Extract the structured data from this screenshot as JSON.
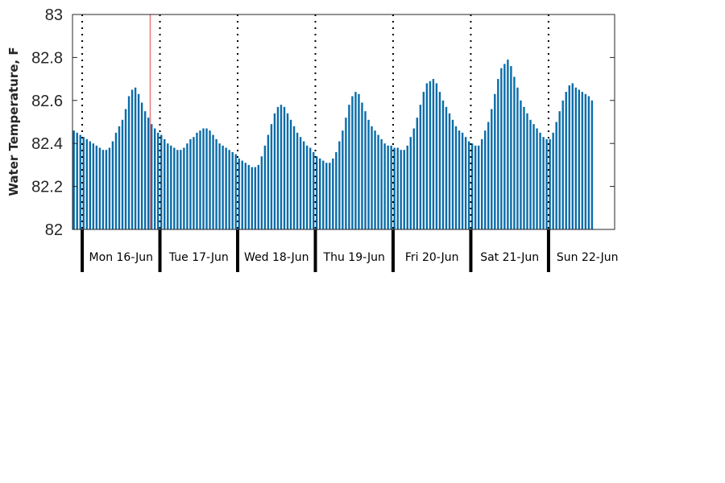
{
  "chart_data": {
    "type": "bar",
    "title": "",
    "xlabel": "",
    "ylabel": "Water Temperature, F",
    "ylim": [
      82,
      83
    ],
    "yticks": [
      82,
      82.2,
      82.4,
      82.6,
      82.8,
      83
    ],
    "ytick_labels": [
      "82",
      "82.2",
      "82.4",
      "82.6",
      "82.8",
      "83"
    ],
    "grid": false,
    "legend": "none",
    "sample_interval_hours": 1,
    "x_start": "15-Jun 21:00",
    "day_labels": [
      "Mon 16-Jun",
      "Tue 17-Jun",
      "Wed 18-Jun",
      "Thu 19-Jun",
      "Fri 20-Jun",
      "Sat 21-Jun",
      "Sun 22-Jun"
    ],
    "day_boundaries": [
      "16-Jun 00:00",
      "17-Jun 00:00",
      "18-Jun 00:00",
      "19-Jun 00:00",
      "20-Jun 00:00",
      "21-Jun 00:00",
      "22-Jun 00:00"
    ],
    "current_time_marker": "16-Jun 21:00",
    "colors": {
      "bar": "#0a6ca8",
      "marker": "#e8787c",
      "day_line": "#000000"
    },
    "values": [
      82.46,
      82.45,
      82.44,
      82.43,
      82.42,
      82.41,
      82.4,
      82.39,
      82.38,
      82.37,
      82.37,
      82.38,
      82.41,
      82.45,
      82.48,
      82.51,
      82.56,
      82.62,
      82.65,
      82.66,
      82.63,
      82.59,
      82.55,
      82.52,
      82.49,
      82.47,
      82.45,
      82.44,
      82.42,
      82.4,
      82.39,
      82.38,
      82.37,
      82.37,
      82.38,
      82.4,
      82.42,
      82.43,
      82.45,
      82.46,
      82.47,
      82.47,
      82.46,
      82.44,
      82.42,
      82.4,
      82.39,
      82.38,
      82.37,
      82.36,
      82.35,
      82.33,
      82.32,
      82.31,
      82.3,
      82.29,
      82.29,
      82.3,
      82.34,
      82.39,
      82.44,
      82.49,
      82.54,
      82.57,
      82.58,
      82.57,
      82.54,
      82.51,
      82.48,
      82.45,
      82.43,
      82.41,
      82.39,
      82.38,
      82.36,
      82.34,
      82.33,
      82.32,
      82.31,
      82.31,
      82.33,
      82.36,
      82.41,
      82.46,
      82.52,
      82.58,
      82.62,
      82.64,
      82.63,
      82.59,
      82.55,
      82.51,
      82.48,
      82.46,
      82.44,
      82.42,
      82.4,
      82.39,
      82.39,
      82.38,
      82.38,
      82.37,
      82.37,
      82.39,
      82.43,
      82.47,
      82.52,
      82.58,
      82.64,
      82.68,
      82.69,
      82.7,
      82.68,
      82.64,
      82.6,
      82.57,
      82.54,
      82.51,
      82.48,
      82.46,
      82.45,
      82.43,
      82.41,
      82.4,
      82.39,
      82.39,
      82.42,
      82.46,
      82.5,
      82.56,
      82.63,
      82.7,
      82.75,
      82.77,
      82.79,
      82.76,
      82.71,
      82.66,
      82.6,
      82.57,
      82.54,
      82.51,
      82.49,
      82.47,
      82.45,
      82.43,
      82.42,
      82.42,
      82.45,
      82.5,
      82.55,
      82.6,
      82.64,
      82.67,
      82.68,
      82.66,
      82.65,
      82.64,
      82.63,
      82.62,
      82.6
    ]
  }
}
